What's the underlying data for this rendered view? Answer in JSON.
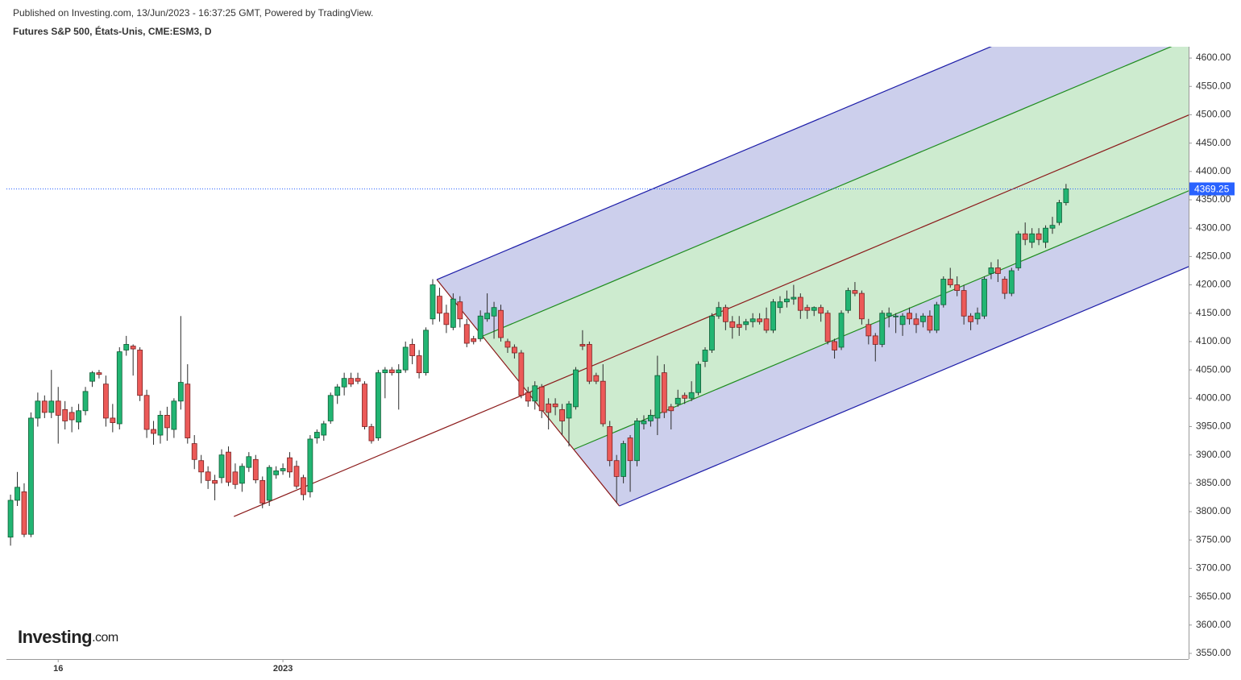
{
  "chart_data": {
    "type": "candlestick",
    "header": "Published on Investing.com, 13/Jun/2023 - 16:37:25 GMT, Powered by TradingView.",
    "title": "Futures S&P 500, États-Unis, CME:ESM3, D",
    "logo": "Investing",
    "logo_suffix": ".com",
    "up_color": "#22b573",
    "down_color": "#ec5a58",
    "open": [
      3755,
      3820,
      3835,
      3760,
      3965,
      3995,
      3975,
      3995,
      3980,
      3975,
      3958,
      3978,
      4030,
      4045,
      4025,
      3965,
      3955,
      4085,
      4092,
      4085,
      4005,
      3945,
      3935,
      3970,
      3945,
      3995,
      4025,
      3920,
      3890,
      3870,
      3855,
      3860,
      3905,
      3870,
      3850,
      3878,
      3892,
      3855,
      3820,
      3865,
      3872,
      3895,
      3880,
      3860,
      3835,
      3930,
      3935,
      3960,
      4005,
      4020,
      4035,
      4035,
      4025,
      3950,
      3930,
      4045,
      4050,
      4045,
      4050,
      4095,
      4075,
      4045,
      4140,
      4180,
      4150,
      4125,
      4170,
      4130,
      4105,
      4105,
      4140,
      4145,
      4155,
      4100,
      4090,
      4080,
      4010,
      3995,
      4020,
      3990,
      3990,
      3980,
      3965,
      3985,
      4095,
      4095,
      4040,
      4030,
      3950,
      3890,
      3862,
      3930,
      3890,
      3955,
      3960,
      3965,
      4045,
      3985,
      3990,
      4005,
      4000,
      4010,
      4065,
      4085,
      4145,
      4160,
      4135,
      4130,
      4130,
      4135,
      4140,
      4140,
      4120,
      4160,
      4170,
      4175,
      4178,
      4160,
      4155,
      4160,
      4150,
      4100,
      4090,
      4155,
      4190,
      4185,
      4130,
      4110,
      4095,
      4145,
      4145,
      4130,
      4150,
      4140,
      4135,
      4145,
      4120,
      4165,
      4210,
      4200,
      4190,
      4145,
      4140,
      4145,
      4220,
      4230,
      4210,
      4185,
      4230,
      4290,
      4275,
      4290,
      4275,
      4300,
      4310,
      4345
    ],
    "high": [
      3830,
      3870,
      3850,
      3975,
      4010,
      4005,
      4050,
      4020,
      3995,
      3985,
      3990,
      4020,
      4048,
      4050,
      4040,
      3990,
      4090,
      4110,
      4095,
      4090,
      4015,
      3960,
      3978,
      3985,
      4000,
      4145,
      4060,
      3935,
      3900,
      3880,
      3865,
      3910,
      3915,
      3885,
      3885,
      3905,
      3900,
      3862,
      3882,
      3880,
      3885,
      3905,
      3890,
      3865,
      3935,
      3945,
      3960,
      4010,
      4025,
      4045,
      4045,
      4045,
      4030,
      3955,
      4050,
      4055,
      4055,
      4060,
      4100,
      4105,
      4085,
      4125,
      4210,
      4195,
      4165,
      4185,
      4180,
      4140,
      4110,
      4155,
      4185,
      4170,
      4165,
      4105,
      4095,
      4085,
      4020,
      4030,
      4025,
      4000,
      4000,
      3990,
      3995,
      4055,
      4120,
      4100,
      4045,
      4060,
      3960,
      3900,
      3925,
      3935,
      3965,
      3970,
      3980,
      4075,
      4060,
      3990,
      4015,
      4010,
      4030,
      4065,
      4090,
      4150,
      4170,
      4165,
      4145,
      4145,
      4140,
      4150,
      4150,
      4160,
      4175,
      4180,
      4190,
      4200,
      4185,
      4165,
      4162,
      4165,
      4155,
      4105,
      4155,
      4195,
      4205,
      4190,
      4140,
      4115,
      4155,
      4160,
      4150,
      4150,
      4160,
      4150,
      4150,
      4155,
      4170,
      4215,
      4230,
      4215,
      4200,
      4150,
      4160,
      4215,
      4240,
      4245,
      4215,
      4230,
      4295,
      4310,
      4300,
      4300,
      4305,
      4320,
      4350,
      4378
    ],
    "low": [
      3740,
      3810,
      3755,
      3755,
      3950,
      3965,
      3965,
      3920,
      3945,
      3940,
      3945,
      3970,
      4020,
      4035,
      3950,
      3940,
      3945,
      4075,
      4040,
      3995,
      3930,
      3918,
      3920,
      3925,
      3930,
      3980,
      3920,
      3875,
      3850,
      3840,
      3820,
      3850,
      3845,
      3840,
      3835,
      3870,
      3850,
      3806,
      3810,
      3858,
      3865,
      3860,
      3840,
      3820,
      3825,
      3920,
      3925,
      3955,
      3990,
      4005,
      4020,
      4025,
      3945,
      3920,
      3925,
      4000,
      4040,
      3980,
      4045,
      4060,
      4035,
      4040,
      4130,
      4135,
      4115,
      4120,
      4125,
      4090,
      4095,
      4100,
      4135,
      4105,
      4100,
      4080,
      4070,
      4000,
      3985,
      3980,
      3965,
      3945,
      3970,
      3935,
      3915,
      3980,
      4085,
      4025,
      4025,
      3950,
      3880,
      3815,
      3850,
      3835,
      3880,
      3945,
      3950,
      3935,
      3965,
      3945,
      3985,
      3990,
      3995,
      4005,
      4055,
      4080,
      4140,
      4120,
      4105,
      4110,
      4120,
      4125,
      4130,
      4115,
      4115,
      4150,
      4160,
      4165,
      4140,
      4140,
      4145,
      4135,
      4095,
      4070,
      4085,
      4150,
      4180,
      4130,
      4095,
      4065,
      4090,
      4125,
      4115,
      4110,
      4130,
      4115,
      4125,
      4115,
      4115,
      4160,
      4195,
      4180,
      4130,
      4120,
      4130,
      4140,
      4210,
      4205,
      4175,
      4180,
      4225,
      4270,
      4265,
      4270,
      4265,
      4290,
      4305,
      4340
    ],
    "close": [
      3820,
      3843,
      3760,
      3965,
      3995,
      3975,
      3995,
      3970,
      3960,
      3962,
      3978,
      4012,
      4045,
      4042,
      3965,
      3957,
      4082,
      4095,
      4087,
      4005,
      3945,
      3938,
      3970,
      3948,
      3995,
      4028,
      3930,
      3892,
      3870,
      3855,
      3850,
      3900,
      3852,
      3848,
      3880,
      3897,
      3856,
      3815,
      3878,
      3872,
      3876,
      3870,
      3845,
      3830,
      3928,
      3940,
      3955,
      4005,
      4020,
      4035,
      4025,
      4030,
      3950,
      3925,
      4045,
      4050,
      4045,
      4050,
      4090,
      4075,
      4045,
      4120,
      4200,
      4150,
      4130,
      4175,
      4140,
      4097,
      4100,
      4145,
      4150,
      4160,
      4107,
      4090,
      4080,
      4005,
      3995,
      4022,
      3978,
      3975,
      3985,
      3960,
      3990,
      4050,
      4092,
      4030,
      4030,
      3955,
      3890,
      3862,
      3920,
      3890,
      3960,
      3960,
      3970,
      4040,
      3975,
      3978,
      4000,
      4000,
      4010,
      4060,
      4085,
      4145,
      4160,
      4135,
      4125,
      4125,
      4135,
      4140,
      4135,
      4120,
      4170,
      4170,
      4175,
      4178,
      4155,
      4155,
      4160,
      4150,
      4100,
      4085,
      4150,
      4190,
      4185,
      4140,
      4110,
      4095,
      4150,
      4150,
      4145,
      4145,
      4140,
      4130,
      4145,
      4120,
      4165,
      4210,
      4200,
      4190,
      4145,
      4135,
      4150,
      4210,
      4230,
      4220,
      4185,
      4225,
      4290,
      4280,
      4290,
      4280,
      4300,
      4305,
      4345,
      4369.25
    ],
    "last_price": 4369.25,
    "xlim": [
      -0.6,
      173
    ],
    "xticks": [
      {
        "value": 7,
        "label": "16"
      },
      {
        "value": 40,
        "label": "2023"
      }
    ],
    "ylim": [
      3540,
      4620
    ],
    "yticks": [
      {
        "value": 3550,
        "label": "3550.00"
      },
      {
        "value": 3600,
        "label": "3600.00"
      },
      {
        "value": 3650,
        "label": "3650.00"
      },
      {
        "value": 3700,
        "label": "3700.00"
      },
      {
        "value": 3750,
        "label": "3750.00"
      },
      {
        "value": 3800,
        "label": "3800.00"
      },
      {
        "value": 3850,
        "label": "3850.00"
      },
      {
        "value": 3900,
        "label": "3900.00"
      },
      {
        "value": 3950,
        "label": "3950.00"
      },
      {
        "value": 4000,
        "label": "4000.00"
      },
      {
        "value": 4050,
        "label": "4050.00"
      },
      {
        "value": 4100,
        "label": "4100.00"
      },
      {
        "value": 4150,
        "label": "4150.00"
      },
      {
        "value": 4200,
        "label": "4200.00"
      },
      {
        "value": 4250,
        "label": "4250.00"
      },
      {
        "value": 4300,
        "label": "4300.00"
      },
      {
        "value": 4350,
        "label": "4350.00"
      },
      {
        "value": 4400,
        "label": "4400.00"
      },
      {
        "value": 4450,
        "label": "4450.00"
      },
      {
        "value": 4500,
        "label": "4500.00"
      },
      {
        "value": 4550,
        "label": "4550.00"
      },
      {
        "value": 4600,
        "label": "4600.00"
      }
    ],
    "pitchfork": {
      "points": [
        {
          "x": 32.8,
          "y": 3791.5
        },
        {
          "x": 62.6,
          "y": 4209.3
        },
        {
          "x": 89.4,
          "y": 3810
        }
      ],
      "median_color": "#8b1a1a",
      "outer_color": "#1c1ca8",
      "inner_color": "#1e8c1e",
      "outer_fill": "#cccfec",
      "inner_fill": "#cdebcf"
    }
  }
}
